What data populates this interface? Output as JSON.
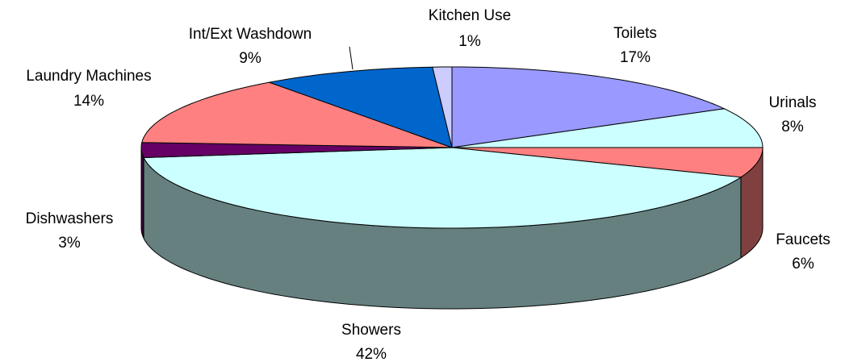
{
  "chart_data": {
    "type": "pie",
    "three_d": true,
    "categories": [
      "Toilets",
      "Urinals",
      "Faucets",
      "Showers",
      "Dishwashers",
      "Laundry  Machines",
      "Int/Ext  Washdown",
      "Kitchen Use"
    ],
    "values": [
      17,
      8,
      6,
      42,
      3,
      14,
      9,
      1
    ],
    "value_labels": [
      "17%",
      "8%",
      "6%",
      "42%",
      "3%",
      "14%",
      "9%",
      "1%"
    ],
    "colors": [
      "#9999ff",
      "#ccffff",
      "#ff8080",
      "#ccffff",
      "#660066",
      "#ff8080",
      "#0066cc",
      "#ccccff"
    ],
    "side_colors": [
      "#4d4d80",
      "#668080",
      "#804040",
      "#668080",
      "#330033",
      "#804040",
      "#003366",
      "#666680"
    ]
  }
}
